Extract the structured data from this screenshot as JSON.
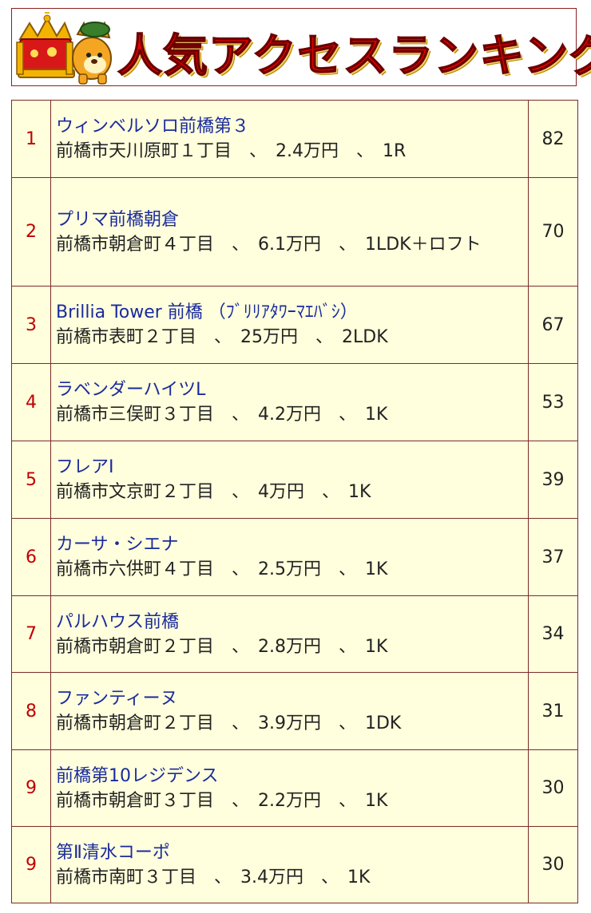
{
  "header": {
    "title": "人気アクセスランキング"
  },
  "ranking": [
    {
      "rank": "1",
      "name": "ウィンベルソロ前橋第３",
      "detail": "前橋市天川原町１丁目　、　2.4万円　、　1R",
      "count": "82"
    },
    {
      "rank": "2",
      "name": "プリマ前橋朝倉",
      "detail": "前橋市朝倉町４丁目　、　6.1万円　、　1LDK＋ロフト",
      "count": "70"
    },
    {
      "rank": "3",
      "name": "Brillia Tower 前橋 （ﾌﾞﾘﾘｱﾀﾜｰﾏｴﾊﾞｼ）",
      "detail": "前橋市表町２丁目　、　25万円　、　2LDK",
      "count": "67"
    },
    {
      "rank": "4",
      "name": "ラベンダーハイツL",
      "detail": "前橋市三俣町３丁目　、　4.2万円　、　1K",
      "count": "53"
    },
    {
      "rank": "5",
      "name": "フレアⅠ",
      "detail": "前橋市文京町２丁目　、　4万円　、　1K",
      "count": "39"
    },
    {
      "rank": "6",
      "name": "カーサ・シエナ",
      "detail": "前橋市六供町４丁目　、　2.5万円　、　1K",
      "count": "37"
    },
    {
      "rank": "7",
      "name": "パルハウス前橋",
      "detail": "前橋市朝倉町２丁目　、　2.8万円　、　1K",
      "count": "34"
    },
    {
      "rank": "8",
      "name": "ファンティーヌ",
      "detail": "前橋市朝倉町２丁目　、　3.9万円　、　1DK",
      "count": "31"
    },
    {
      "rank": "9",
      "name": "前橋第10レジデンス",
      "detail": "前橋市朝倉町３丁目　、　2.2万円　、　1K",
      "count": "30"
    },
    {
      "rank": "9",
      "name": "第Ⅱ清水コーポ",
      "detail": "前橋市南町３丁目　、　3.4万円　、　1K",
      "count": "30"
    }
  ]
}
